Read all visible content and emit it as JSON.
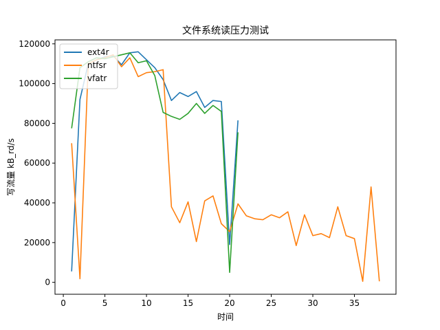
{
  "chart_data": {
    "type": "line",
    "title": "文件系统读压力测试",
    "xlabel": "时间",
    "ylabel": "写流量 kB_rd/s",
    "xlim": [
      -1,
      40
    ],
    "ylim": [
      -6000,
      122000
    ],
    "xticks": [
      0,
      5,
      10,
      15,
      20,
      25,
      30,
      35
    ],
    "yticks": [
      0,
      20000,
      40000,
      60000,
      80000,
      100000,
      120000
    ],
    "grid": false,
    "legend_position": "top-left",
    "series": [
      {
        "name": "ext4r",
        "color": "#1f77b4",
        "x": [
          1,
          2,
          3,
          4,
          5,
          6,
          7,
          8,
          9,
          10,
          11,
          12,
          13,
          14,
          15,
          16,
          17,
          18,
          19,
          20,
          21
        ],
        "y": [
          5500,
          92000,
          110000,
          112000,
          113500,
          114000,
          109500,
          115500,
          116000,
          112000,
          108000,
          102000,
          91500,
          95500,
          93500,
          96000,
          88000,
          91500,
          91000,
          19000,
          81500
        ]
      },
      {
        "name": "ntfsr",
        "color": "#ff7f0e",
        "x": [
          1,
          2,
          3,
          4,
          5,
          6,
          7,
          8,
          9,
          10,
          11,
          12,
          13,
          14,
          15,
          16,
          17,
          18,
          19,
          20,
          21,
          22,
          23,
          24,
          25,
          26,
          27,
          28,
          29,
          30,
          31,
          32,
          33,
          34,
          35,
          36,
          37,
          38
        ],
        "y": [
          70000,
          1800,
          110000,
          112000,
          113000,
          114500,
          108500,
          113000,
          103500,
          105500,
          106000,
          107000,
          38000,
          30000,
          40500,
          20500,
          41000,
          43500,
          29500,
          25500,
          39500,
          33500,
          32000,
          31500,
          34000,
          32500,
          35500,
          18500,
          34000,
          23500,
          24500,
          22500,
          38000,
          23500,
          22000,
          500,
          48000,
          500
        ]
      },
      {
        "name": "vfatr",
        "color": "#2ca02c",
        "x": [
          1,
          2,
          3,
          4,
          5,
          6,
          7,
          8,
          9,
          10,
          11,
          12,
          13,
          14,
          15,
          16,
          17,
          18,
          19,
          20,
          21
        ],
        "y": [
          77500,
          108000,
          111000,
          113000,
          112500,
          113500,
          114500,
          115500,
          110500,
          111500,
          104000,
          85500,
          83500,
          82000,
          85000,
          90000,
          85000,
          89000,
          86000,
          5000,
          75500
        ]
      }
    ]
  }
}
